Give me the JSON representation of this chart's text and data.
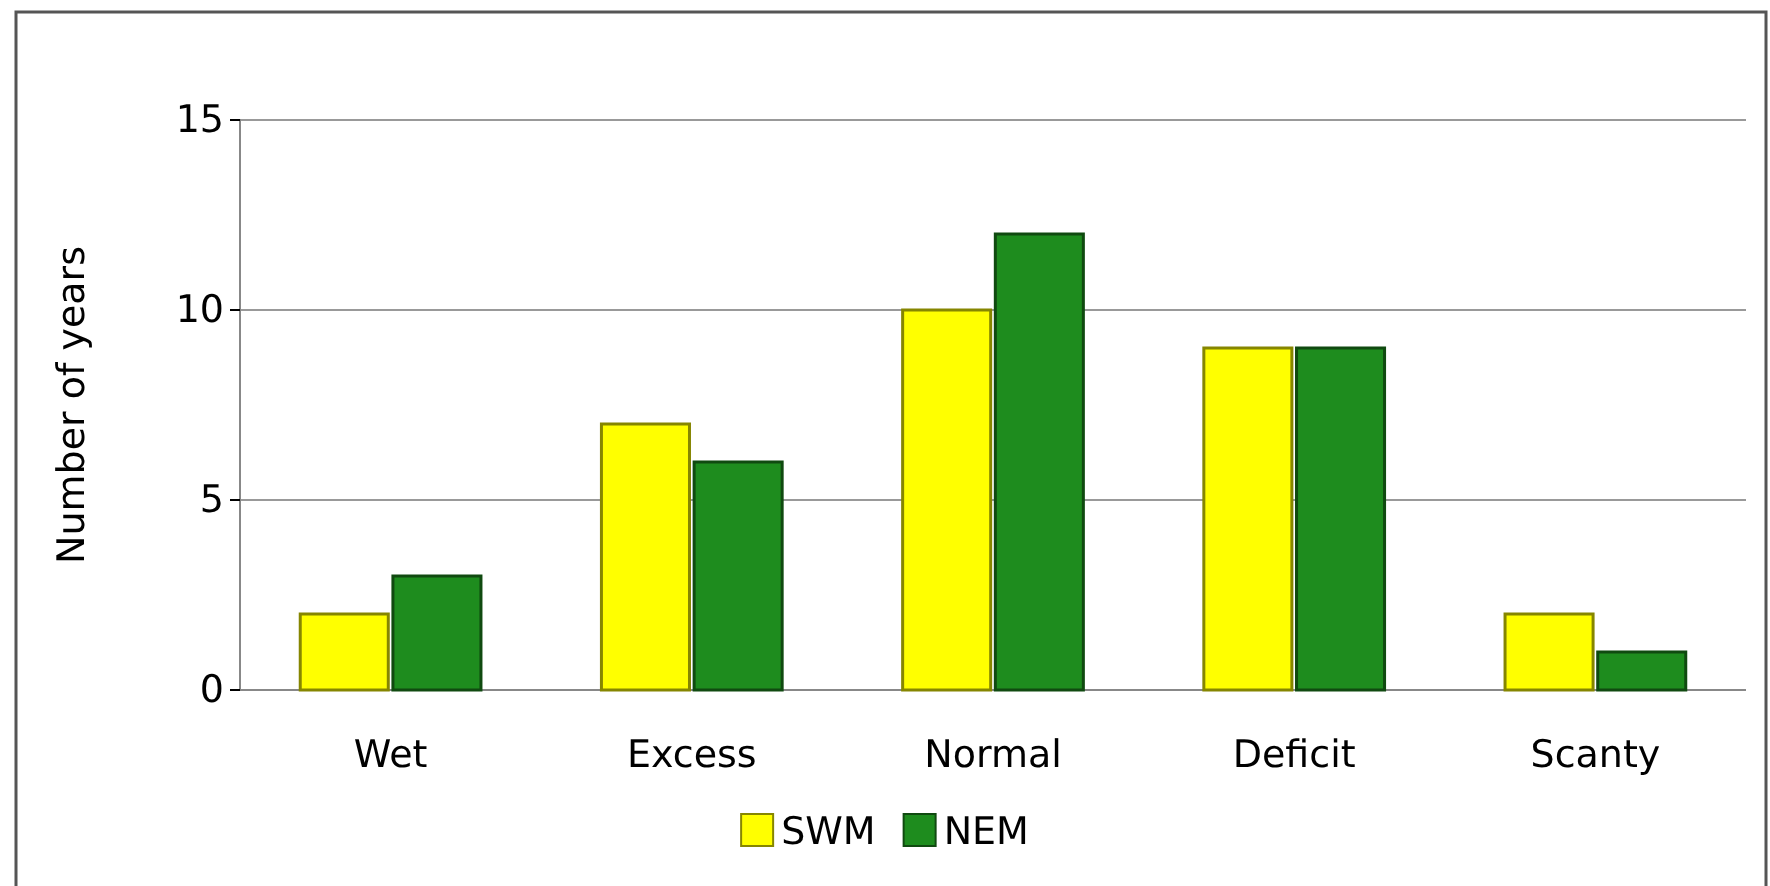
{
  "chart_data": {
    "type": "bar",
    "ylabel": "Number of years",
    "categories": [
      "Wet",
      "Excess",
      "Normal",
      "Deficit",
      "Scanty"
    ],
    "series": [
      {
        "name": "SWM",
        "color": "#ffff00",
        "values": [
          2,
          7,
          10,
          9,
          2
        ]
      },
      {
        "name": "NEM",
        "color": "#1e8c1e",
        "values": [
          3,
          6,
          12,
          9,
          1
        ]
      }
    ],
    "ylim": [
      0,
      15
    ],
    "yticks": [
      0,
      5,
      10,
      15
    ],
    "grid": "y",
    "legend": "bottom"
  }
}
